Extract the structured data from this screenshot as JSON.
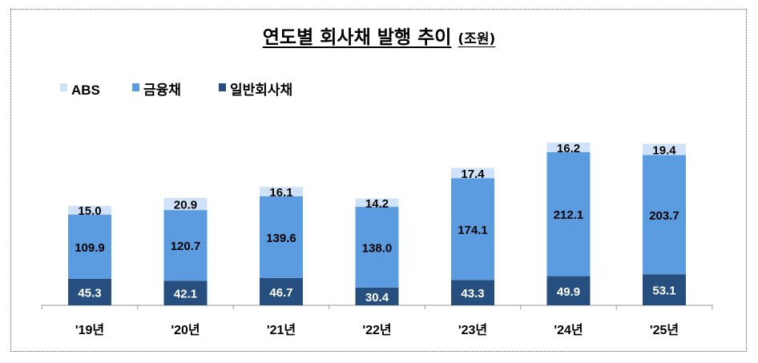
{
  "chart_data": {
    "type": "bar",
    "stacked": true,
    "title": "연도별 회사채 발행 추이",
    "unit": "(조원)",
    "categories": [
      "'19년",
      "'20년",
      "'21년",
      "'22년",
      "'23년",
      "'24년",
      "'25년"
    ],
    "series": [
      {
        "name": "일반회사채",
        "color": "#264F80",
        "values": [
          45.3,
          42.1,
          46.7,
          30.4,
          43.3,
          49.9,
          53.1
        ]
      },
      {
        "name": "금융채",
        "color": "#5B9BE0",
        "values": [
          109.9,
          120.7,
          139.6,
          138.0,
          174.1,
          212.1,
          203.7
        ]
      },
      {
        "name": "ABS",
        "color": "#CFE2F8",
        "values": [
          15.0,
          20.9,
          16.1,
          14.2,
          17.4,
          16.2,
          19.4
        ]
      }
    ],
    "legend_order": [
      "ABS",
      "금융채",
      "일반회사채"
    ],
    "legend_placement": "top-left",
    "grid": false,
    "ylim": [
      0,
      300
    ]
  }
}
